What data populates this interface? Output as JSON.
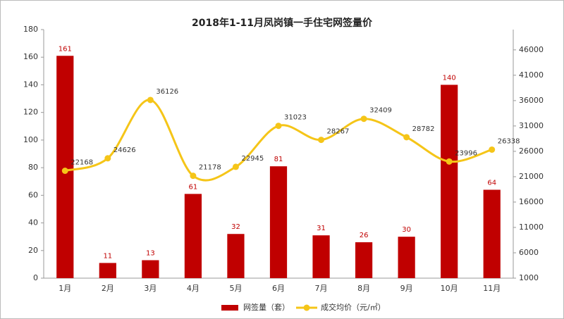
{
  "chart_data": {
    "type": "bar",
    "title": "2018年1-11月凤岗镇一手住宅网签量价",
    "categories": [
      "1月",
      "2月",
      "3月",
      "4月",
      "5月",
      "6月",
      "7月",
      "8月",
      "9月",
      "10月",
      "11月"
    ],
    "series": [
      {
        "name": "网签量（套）",
        "color": "#c00000",
        "values": [
          161,
          11,
          13,
          61,
          32,
          81,
          31,
          26,
          30,
          140,
          64
        ]
      },
      {
        "name": "成交均价（元/㎡）",
        "color": "#f5c518",
        "axis": "y2",
        "values": [
          22168,
          24626,
          36126,
          21178,
          22945,
          31023,
          28267,
          32409,
          28782,
          23996,
          26338
        ]
      }
    ],
    "ylim": [
      0,
      180
    ],
    "yticks": [
      0,
      20,
      40,
      60,
      80,
      100,
      120,
      140,
      160,
      180
    ],
    "y2lim": [
      1000,
      50000
    ],
    "y2ticks": [
      1000,
      6000,
      11000,
      16000,
      21000,
      26000,
      31000,
      36000,
      41000,
      46000
    ],
    "legend": "bottom"
  }
}
